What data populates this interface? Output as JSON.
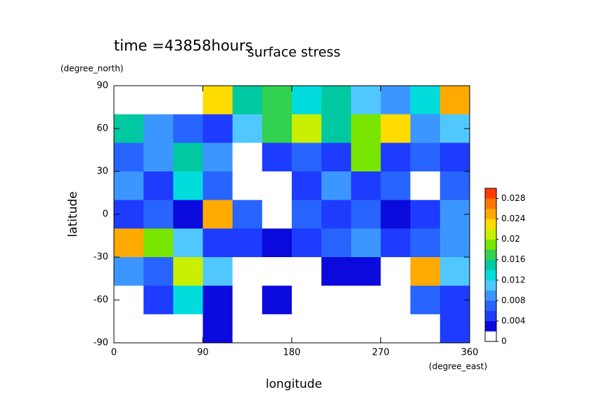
{
  "chart_data": {
    "type": "contourf",
    "title": "surface stress",
    "subtitle": "time =43858hours",
    "x_label": "longitude",
    "x_unit": "(degree_east)",
    "y_label": "latitude",
    "y_unit": "(degree_north)",
    "x": [
      15,
      45,
      75,
      105,
      135,
      165,
      195,
      225,
      255,
      285,
      315,
      345
    ],
    "y": [
      80,
      60,
      40,
      20,
      0,
      -20,
      -40,
      -60,
      -80
    ],
    "z": [
      [
        0.001,
        0.001,
        0.001,
        0.022,
        0.014,
        0.016,
        0.012,
        0.014,
        0.01,
        0.008,
        0.012,
        0.024
      ],
      [
        0.014,
        0.008,
        0.006,
        0.004,
        0.01,
        0.016,
        0.02,
        0.014,
        0.018,
        0.022,
        0.008,
        0.01
      ],
      [
        0.006,
        0.008,
        0.014,
        0.008,
        0.001,
        0.004,
        0.006,
        0.004,
        0.018,
        0.004,
        0.006,
        0.004
      ],
      [
        0.008,
        0.004,
        0.012,
        0.006,
        0.001,
        0.001,
        0.004,
        0.008,
        0.004,
        0.006,
        0.001,
        0.006
      ],
      [
        0.004,
        0.006,
        0.002,
        0.024,
        0.006,
        0.001,
        0.006,
        0.004,
        0.006,
        0.002,
        0.004,
        0.008
      ],
      [
        0.024,
        0.018,
        0.01,
        0.004,
        0.004,
        0.002,
        0.004,
        0.006,
        0.008,
        0.004,
        0.006,
        0.008
      ],
      [
        0.008,
        0.006,
        0.02,
        0.01,
        0.001,
        0.001,
        0.001,
        0.002,
        0.002,
        0.001,
        0.024,
        0.01
      ],
      [
        0.001,
        0.004,
        0.012,
        0.002,
        0.001,
        0.002,
        0.001,
        0.001,
        0.001,
        0.001,
        0.006,
        0.004
      ],
      [
        0.001,
        0.001,
        0.001,
        0.002,
        0.001,
        0.001,
        0.001,
        0.001,
        0.001,
        0.001,
        0.001,
        0.004
      ]
    ],
    "xlim": [
      0,
      360
    ],
    "xticks": [
      0,
      90,
      180,
      270,
      360
    ],
    "ylim": [
      -90,
      90
    ],
    "yticks": [
      -90,
      -60,
      -30,
      0,
      30,
      60,
      90
    ],
    "levels": [
      0,
      0.002,
      0.004,
      0.006,
      0.008,
      0.01,
      0.012,
      0.014,
      0.016,
      0.018,
      0.02,
      0.022,
      0.024,
      0.026,
      0.028,
      0.03
    ],
    "level_colors": [
      "#ffffff",
      "#0a0adc",
      "#1e3cff",
      "#2864ff",
      "#3c96ff",
      "#50c8ff",
      "#00dcdc",
      "#00c8a0",
      "#32d250",
      "#78e600",
      "#c8f000",
      "#ffdc00",
      "#ffaa00",
      "#ff7800",
      "#ff3c00"
    ],
    "colorbar_ticks": [
      0,
      0.004,
      0.008,
      0.012,
      0.016,
      0.02,
      0.024,
      0.028
    ]
  }
}
